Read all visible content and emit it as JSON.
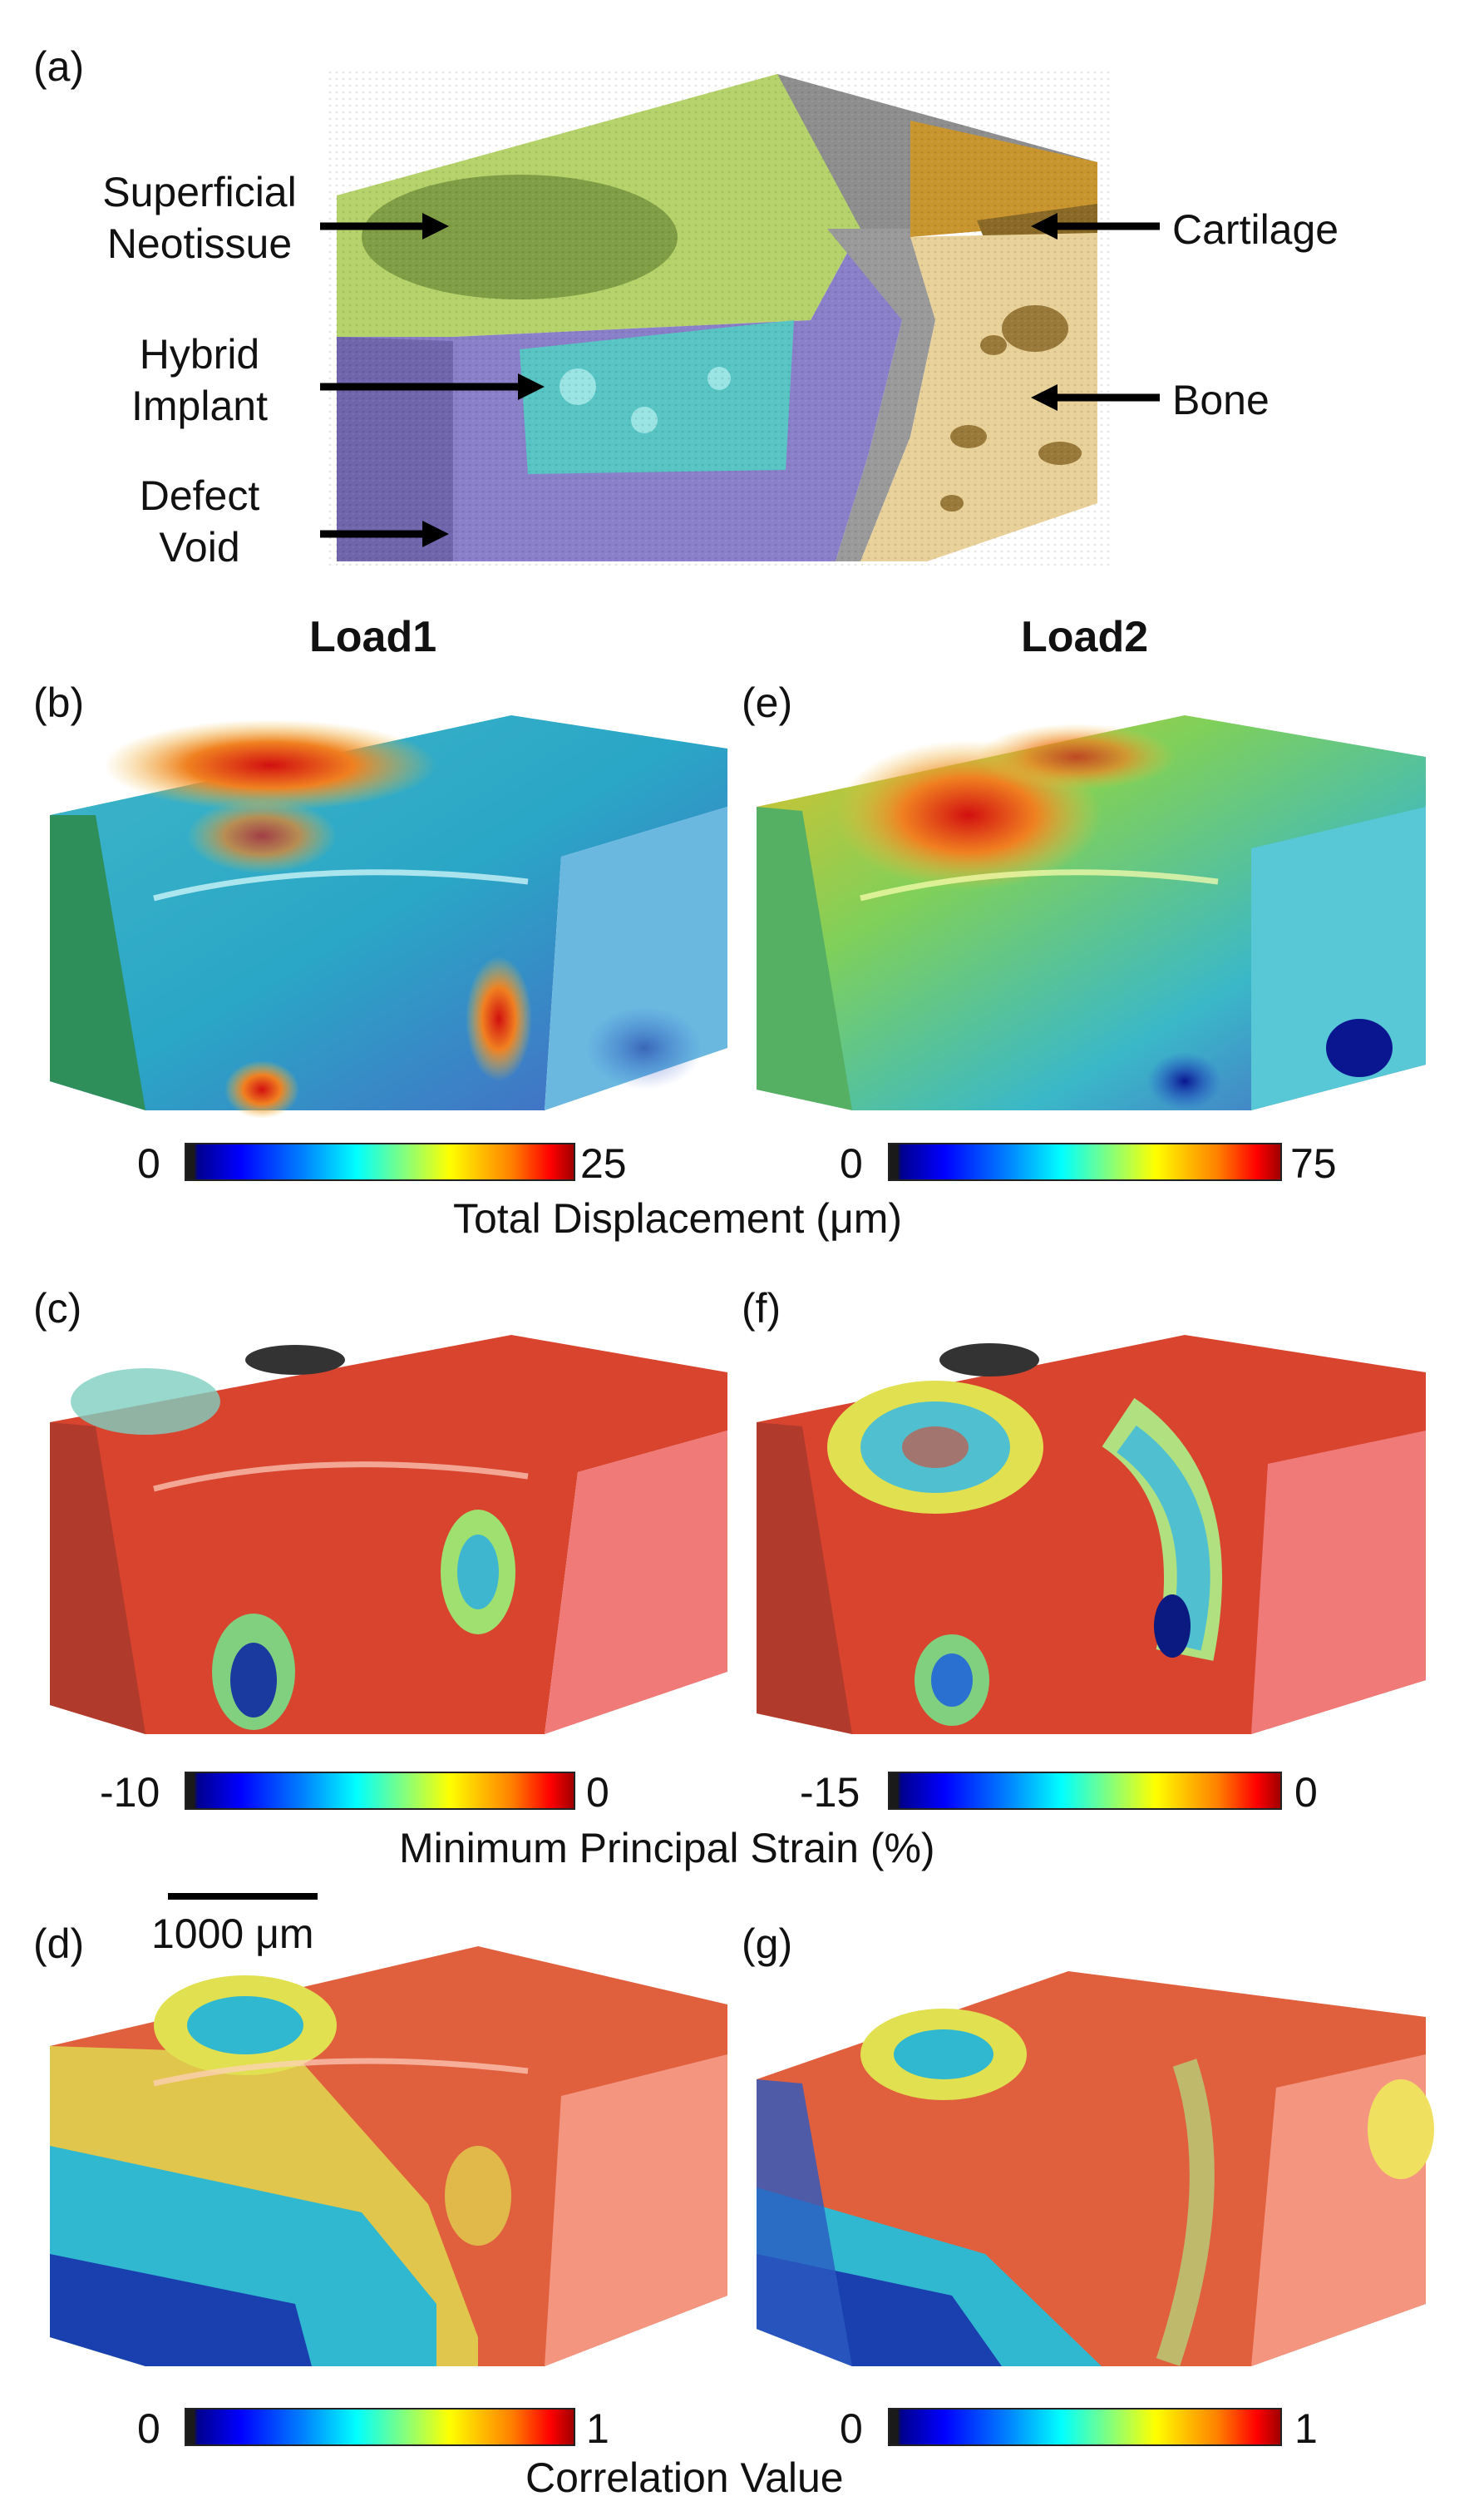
{
  "panels": {
    "a": "(a)",
    "b": "(b)",
    "c": "(c)",
    "d": "(d)",
    "e": "(e)",
    "f": "(f)",
    "g": "(g)"
  },
  "columns": {
    "load1": "Load1",
    "load2": "Load2"
  },
  "annotations": {
    "superficial_neotissue": [
      "Superficial",
      "Neotissue"
    ],
    "hybrid_implant": [
      "Hybrid",
      "Implant"
    ],
    "defect_void": [
      "Defect",
      "Void"
    ],
    "cartilage": "Cartilage",
    "bone": "Bone"
  },
  "colorbars": {
    "displacement_load1": {
      "min": "0",
      "max": "25"
    },
    "displacement_load2": {
      "min": "0",
      "max": "75"
    },
    "displacement_title": "Total Displacement (μm)",
    "strain_load1": {
      "min": "-10",
      "max": "0"
    },
    "strain_load2": {
      "min": "-15",
      "max": "0"
    },
    "strain_title": "Minimum Principal Strain (%)",
    "correlation_load1": {
      "min": "0",
      "max": "1"
    },
    "correlation_load2": {
      "min": "0",
      "max": "1"
    },
    "correlation_title": "Correlation Value"
  },
  "scale_bar": "1000 μm",
  "colors": {
    "neotissue": "#b5d36a",
    "implant": "#58c4c4",
    "void": "#8a7fc9",
    "cartilage": "#c9952e",
    "bone": "#e9d19a"
  }
}
